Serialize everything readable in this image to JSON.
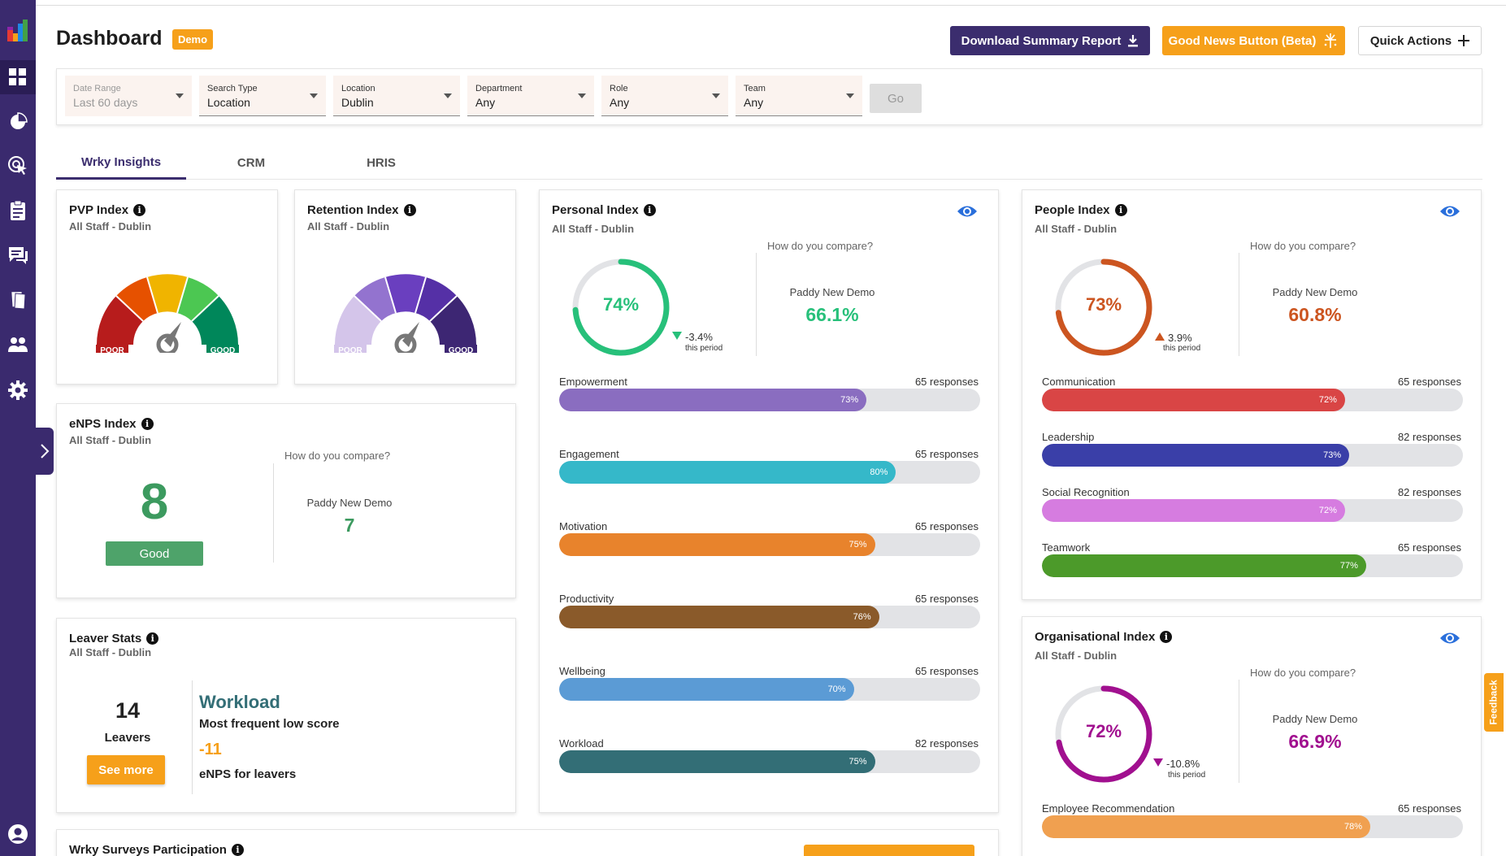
{
  "header": {
    "title": "Dashboard",
    "badge": "Demo",
    "download_label": "Download Summary Report",
    "goodnews_label": "Good News Button (Beta)",
    "quick_actions_label": "Quick Actions"
  },
  "filters": {
    "date": {
      "label": "Date Range",
      "value": "Last 60 days"
    },
    "search": {
      "label": "Search Type",
      "value": "Location"
    },
    "location": {
      "label": "Location",
      "value": "Dublin"
    },
    "department": {
      "label": "Department",
      "value": "Any"
    },
    "role": {
      "label": "Role",
      "value": "Any"
    },
    "team": {
      "label": "Team",
      "value": "Any"
    },
    "go_label": "Go"
  },
  "tabs": [
    "Wrky Insights",
    "CRM",
    "HRIS"
  ],
  "common": {
    "info": "i",
    "subtitle": "All Staff - Dublin",
    "compare": "How do you compare?",
    "compare_name": "Paddy New Demo",
    "period": "this period"
  },
  "gauge": {
    "poor": "POOR",
    "good": "GOOD"
  },
  "pvp": {
    "title": "PVP Index"
  },
  "retention": {
    "title": "Retention Index"
  },
  "enps": {
    "title": "eNPS Index",
    "score": "8",
    "rating": "Good",
    "compare_value": "7"
  },
  "leaver": {
    "title": "Leaver Stats",
    "count": "14",
    "count_label": "Leavers",
    "see_more": "See more",
    "topic": "Workload",
    "topic_sub": "Most frequent low score",
    "enps": "-11",
    "enps_label": "eNPS for leavers"
  },
  "participation": {
    "title": "Wrky Surveys Participation"
  },
  "personal": {
    "title": "Personal Index",
    "score": "74%",
    "score_value": 74,
    "change": "-3.4%",
    "compare_value": "66.1%",
    "color": "#27c07a",
    "bars": [
      {
        "label": "Empowerment",
        "value": 73,
        "pct": "73%",
        "responses": "65 responses",
        "color": "#8a6dc0"
      },
      {
        "label": "Engagement",
        "value": 80,
        "pct": "80%",
        "responses": "65 responses",
        "color": "#35b8c9"
      },
      {
        "label": "Motivation",
        "value": 75,
        "pct": "75%",
        "responses": "65 responses",
        "color": "#e8832c"
      },
      {
        "label": "Productivity",
        "value": 76,
        "pct": "76%",
        "responses": "65 responses",
        "color": "#8a5a2a"
      },
      {
        "label": "Wellbeing",
        "value": 70,
        "pct": "70%",
        "responses": "65 responses",
        "color": "#5b9bd5"
      },
      {
        "label": "Workload",
        "value": 75,
        "pct": "75%",
        "responses": "82 responses",
        "color": "#336e76"
      }
    ]
  },
  "people": {
    "title": "People Index",
    "score": "73%",
    "score_value": 73,
    "change": "3.9%",
    "compare_value": "60.8%",
    "color": "#cc5520",
    "bars": [
      {
        "label": "Communication",
        "value": 72,
        "pct": "72%",
        "responses": "65 responses",
        "color": "#d94545"
      },
      {
        "label": "Leadership",
        "value": 73,
        "pct": "73%",
        "responses": "82 responses",
        "color": "#3a3fa8"
      },
      {
        "label": "Social Recognition",
        "value": 72,
        "pct": "72%",
        "responses": "82 responses",
        "color": "#d67ce0"
      },
      {
        "label": "Teamwork",
        "value": 77,
        "pct": "77%",
        "responses": "65 responses",
        "color": "#4c9a2a"
      }
    ]
  },
  "org": {
    "title": "Organisational Index",
    "score": "72%",
    "score_value": 72,
    "change": "-10.8%",
    "compare_value": "66.9%",
    "color": "#a1108f",
    "bars": [
      {
        "label": "Employee Recommendation",
        "value": 78,
        "pct": "78%",
        "responses": "65 responses",
        "color": "#f0a050"
      }
    ]
  },
  "feedback": "Feedback",
  "colors": {
    "sidebar": "#3a2a6e",
    "accent_orange": "#f6a01a",
    "positive": "#27c07a"
  }
}
